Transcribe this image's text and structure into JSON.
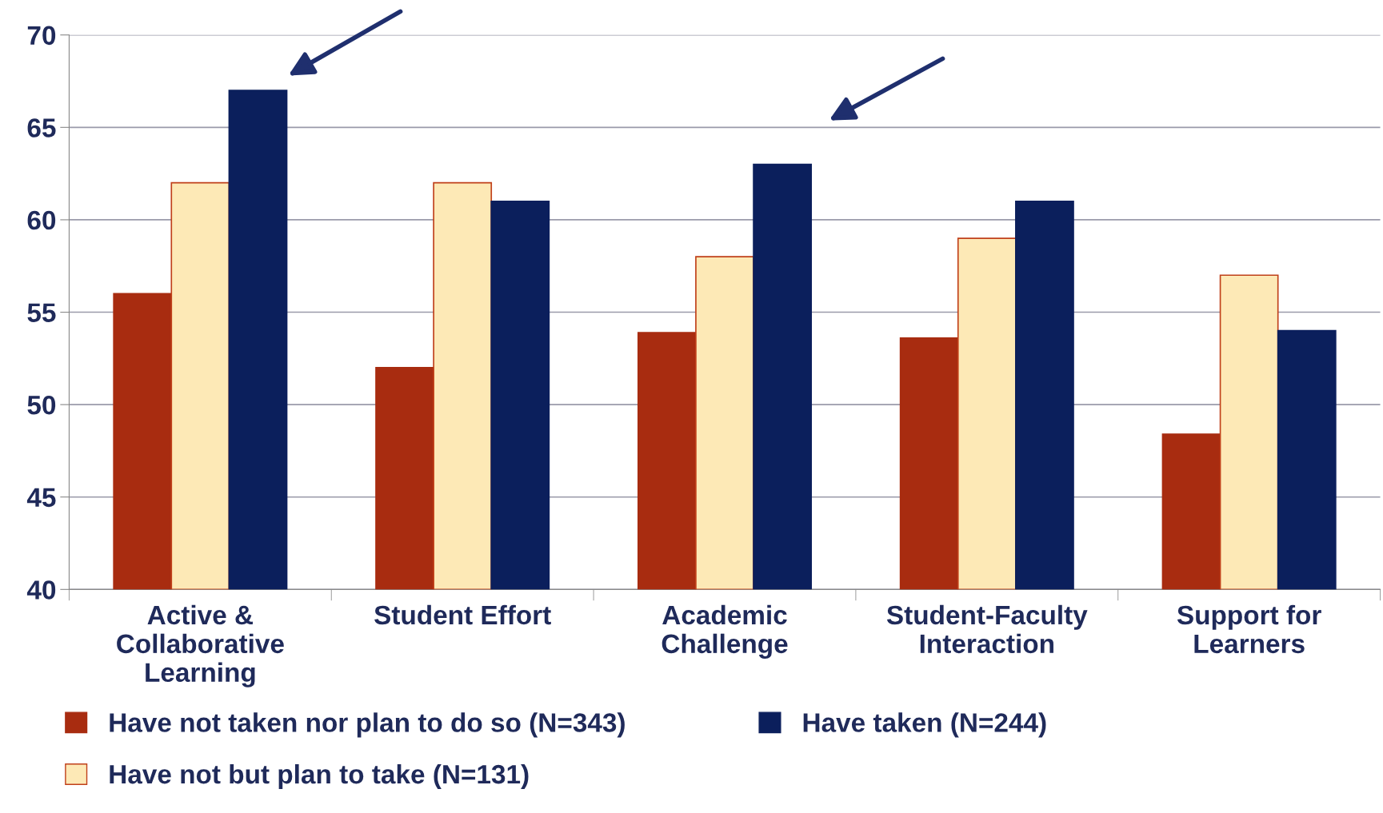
{
  "chart_data": {
    "type": "bar",
    "categories": [
      "Active &\nCollaborative\nLearning",
      "Student Effort",
      "Academic\nChallenge",
      "Student-Faculty\nInteraction",
      "Support for\nLearners"
    ],
    "series": [
      {
        "name": "Have not taken nor plan to do so (N=343)",
        "color": "#a82c10",
        "values": [
          56.0,
          52.0,
          53.9,
          53.6,
          48.4
        ]
      },
      {
        "name": "Have not but plan to take (N=131)",
        "color": "#fde9b6",
        "values": [
          62.0,
          62.0,
          58.0,
          59.0,
          57.0
        ]
      },
      {
        "name": "Have taken (N=244)",
        "color": "#0b1f5c",
        "values": [
          67.0,
          61.0,
          63.0,
          61.0,
          54.0
        ]
      }
    ],
    "ylim": [
      40,
      70
    ],
    "yticks": [
      40,
      45,
      50,
      55,
      60,
      65,
      70
    ],
    "grid": "y",
    "legend": "bottom"
  }
}
